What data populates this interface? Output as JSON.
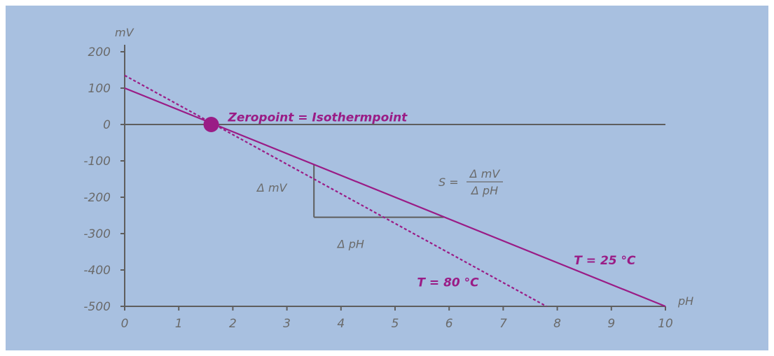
{
  "chart_data": {
    "type": "line",
    "xlabel": "pH",
    "ylabel": "mV",
    "xlim": [
      0,
      10
    ],
    "ylim": [
      -500,
      200
    ],
    "x_ticks": [
      "0",
      "1",
      "2",
      "3",
      "4",
      "5",
      "6",
      "7",
      "8",
      "9",
      "10"
    ],
    "y_ticks": [
      "200",
      "100",
      "0",
      "-100",
      "-200",
      "-300",
      "-400",
      "-500"
    ],
    "grid": false,
    "series": [
      {
        "name": "T = 25 °C",
        "style": "solid",
        "x": [
          0,
          10
        ],
        "y": [
          100,
          -500
        ]
      },
      {
        "name": "T = 80 °C",
        "style": "dashed",
        "x": [
          0,
          7.8
        ],
        "y": [
          135,
          -500
        ]
      }
    ],
    "zeropoint": {
      "label": "Zeropoint = Isothermpoint",
      "x": 1.6,
      "y": 0
    },
    "slope_triangle": {
      "x_start": 3.5,
      "x_end": 5.9,
      "y_top": -110,
      "y_bottom": -255,
      "delta_mv_label": "Δ mV",
      "delta_ph_label": "Δ pH"
    },
    "formula": {
      "lhs": "S =",
      "numerator": "Δ mV",
      "denominator": "Δ pH"
    },
    "colors": {
      "background": "#a8c0e0",
      "curve": "#9a1c86",
      "axis": "#5e5e5e",
      "text": "#6a6a6a"
    }
  }
}
